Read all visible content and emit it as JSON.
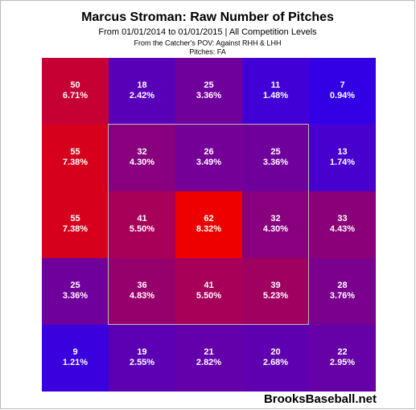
{
  "chart_data": {
    "type": "heatmap",
    "title": "Marcus Stroman: Raw Number of Pitches",
    "subtitle": "From 01/01/2014 to 01/01/2015 | All Competition Levels",
    "perspective": "From the Catcher's POV:  Against RHH & LHH",
    "pitches": "Pitches:  FA",
    "watermark": "BrooksBaseball.net",
    "color_low": "#3300e6",
    "color_high": "#ee0000",
    "counts": [
      [
        50,
        18,
        25,
        11,
        7
      ],
      [
        55,
        32,
        26,
        25,
        13
      ],
      [
        55,
        41,
        62,
        32,
        33
      ],
      [
        25,
        36,
        41,
        39,
        28
      ],
      [
        9,
        19,
        21,
        20,
        22
      ]
    ],
    "percents": [
      [
        6.71,
        2.42,
        3.36,
        1.48,
        0.94
      ],
      [
        7.38,
        4.3,
        3.49,
        3.36,
        1.74
      ],
      [
        7.38,
        5.5,
        8.32,
        4.3,
        4.43
      ],
      [
        3.36,
        4.83,
        5.5,
        5.23,
        3.76
      ],
      [
        1.21,
        2.55,
        2.82,
        2.68,
        2.95
      ]
    ],
    "percent_labels": [
      [
        "6.71%",
        "2.42%",
        "3.36%",
        "1.48%",
        "0.94%"
      ],
      [
        "7.38%",
        "4.30%",
        "3.49%",
        "3.36%",
        "1.74%"
      ],
      [
        "7.38%",
        "5.50%",
        "8.32%",
        "4.30%",
        "4.43%"
      ],
      [
        "3.36%",
        "4.83%",
        "5.50%",
        "5.23%",
        "3.76%"
      ],
      [
        "1.21%",
        "2.55%",
        "2.82%",
        "2.68%",
        "2.95%"
      ]
    ]
  }
}
